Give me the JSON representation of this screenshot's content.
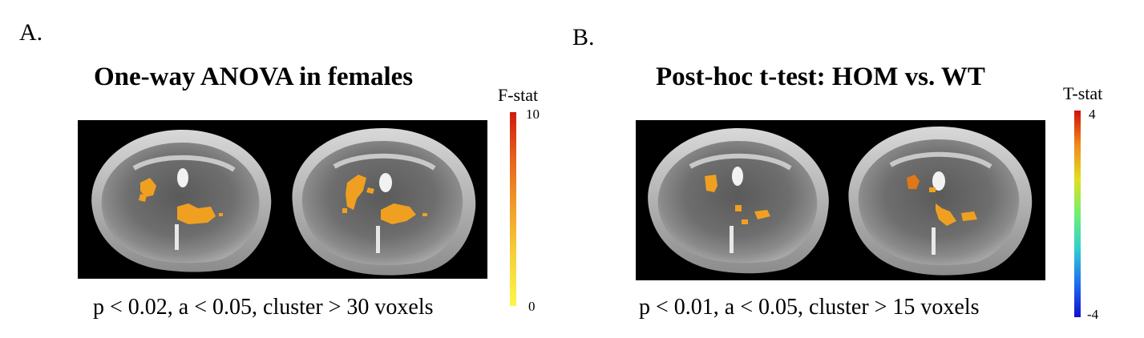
{
  "panels": [
    {
      "letter": "A.",
      "title": "One-way ANOVA in females",
      "caption": "p < 0.02, a < 0.05, cluster > 30 voxels",
      "colorbar": {
        "title": "F-stat",
        "max_label": "10",
        "min_label": "0",
        "colors": [
          "#d01a0d",
          "#e8641e",
          "#f0a02a",
          "#f6d33a",
          "#fbf54a"
        ]
      }
    },
    {
      "letter": "B.",
      "title": "Post-hoc t-test: HOM vs. WT",
      "caption": "p < 0.01, a < 0.05, cluster > 15 voxels",
      "colorbar": {
        "title": "T-stat",
        "max_label": "4",
        "min_label": "-4",
        "colors": [
          "#d0100a",
          "#f08a1c",
          "#e0e020",
          "#70f070",
          "#30d0d0",
          "#2070f0",
          "#1010d0"
        ]
      }
    }
  ],
  "overlay_color": "#f0a020"
}
